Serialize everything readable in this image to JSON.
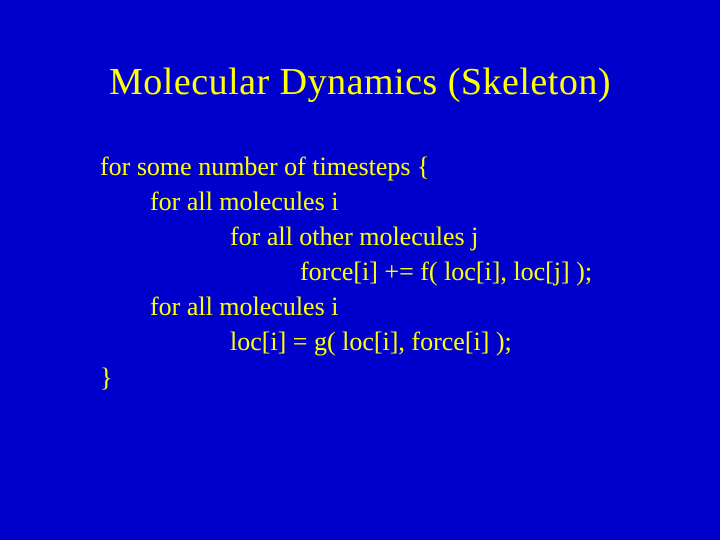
{
  "slide": {
    "background_color": "#0000cc",
    "text_color": "#ffff00",
    "title": "Molecular Dynamics (Skeleton)",
    "title_fontsize": 38,
    "body_fontsize": 26,
    "font_family": "Times New Roman",
    "lines": [
      {
        "indent": 0,
        "text": "for some number of timesteps {"
      },
      {
        "indent": 1,
        "text": "for all molecules i"
      },
      {
        "indent": 2,
        "text": "for all other molecules j"
      },
      {
        "indent": 3,
        "text": "force[i] += f( loc[i], loc[j] );"
      },
      {
        "indent": 1,
        "text": "for all molecules i"
      },
      {
        "indent": 2,
        "text": "loc[i] = g( loc[i], force[i] );"
      },
      {
        "indent": 0,
        "text": "}"
      }
    ]
  }
}
